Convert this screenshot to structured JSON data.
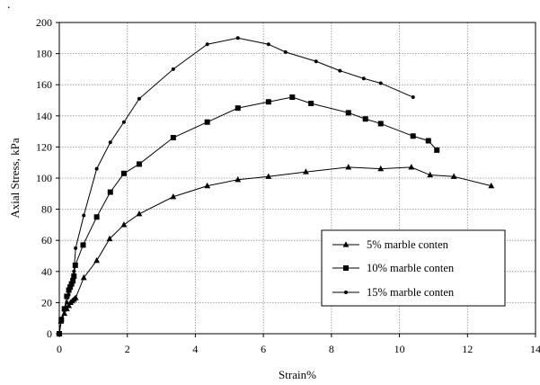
{
  "chart_data": {
    "type": "line",
    "xlabel": "Strain%",
    "ylabel": "Axial Stress, kPa",
    "xlim": [
      0,
      14
    ],
    "ylim": [
      0,
      200
    ],
    "xticks": [
      0,
      2,
      4,
      6,
      8,
      10,
      12,
      14
    ],
    "yticks": [
      0,
      20,
      40,
      60,
      80,
      100,
      120,
      140,
      160,
      180,
      200
    ],
    "grid": true,
    "legend_position": "lower-right",
    "corner_mark": ".",
    "series": [
      {
        "name": "5% marble conten",
        "marker": "triangle",
        "x": [
          0,
          0.05,
          0.15,
          0.22,
          0.28,
          0.33,
          0.38,
          0.43,
          0.48,
          0.72,
          1.1,
          1.48,
          1.9,
          2.35,
          3.35,
          4.35,
          5.25,
          6.15,
          7.25,
          8.5,
          9.45,
          10.35,
          10.9,
          11.6,
          12.7
        ],
        "y": [
          0,
          8,
          13,
          16,
          18,
          20,
          21,
          22,
          23,
          36,
          47,
          61,
          70,
          77,
          88,
          95,
          99,
          101,
          104,
          107,
          106,
          107,
          102,
          101,
          95
        ]
      },
      {
        "name": "10% marble conten",
        "marker": "square",
        "x": [
          0,
          0.06,
          0.15,
          0.22,
          0.28,
          0.32,
          0.36,
          0.4,
          0.43,
          0.47,
          0.7,
          1.1,
          1.5,
          1.9,
          2.35,
          3.35,
          4.35,
          5.25,
          6.15,
          6.85,
          7.4,
          8.5,
          9.0,
          9.45,
          10.4,
          10.85,
          11.1
        ],
        "y": [
          0,
          9,
          16,
          24,
          28,
          30,
          32,
          34,
          37,
          44,
          57,
          75,
          91,
          103,
          109,
          126,
          136,
          145,
          149,
          152,
          148,
          142,
          138,
          135,
          127,
          124,
          118
        ]
      },
      {
        "name": "15% marble conten",
        "marker": "diamond",
        "x": [
          0,
          0.07,
          0.15,
          0.22,
          0.28,
          0.33,
          0.38,
          0.43,
          0.48,
          0.72,
          1.1,
          1.5,
          1.9,
          2.35,
          3.35,
          4.35,
          5.25,
          6.15,
          6.65,
          7.55,
          8.25,
          8.95,
          9.45,
          10.4
        ],
        "y": [
          0,
          10,
          15,
          20,
          25,
          30,
          35,
          40,
          55,
          76,
          106,
          123,
          136,
          151,
          170,
          186,
          190,
          186,
          181,
          175,
          169,
          164,
          161,
          152
        ]
      }
    ]
  }
}
